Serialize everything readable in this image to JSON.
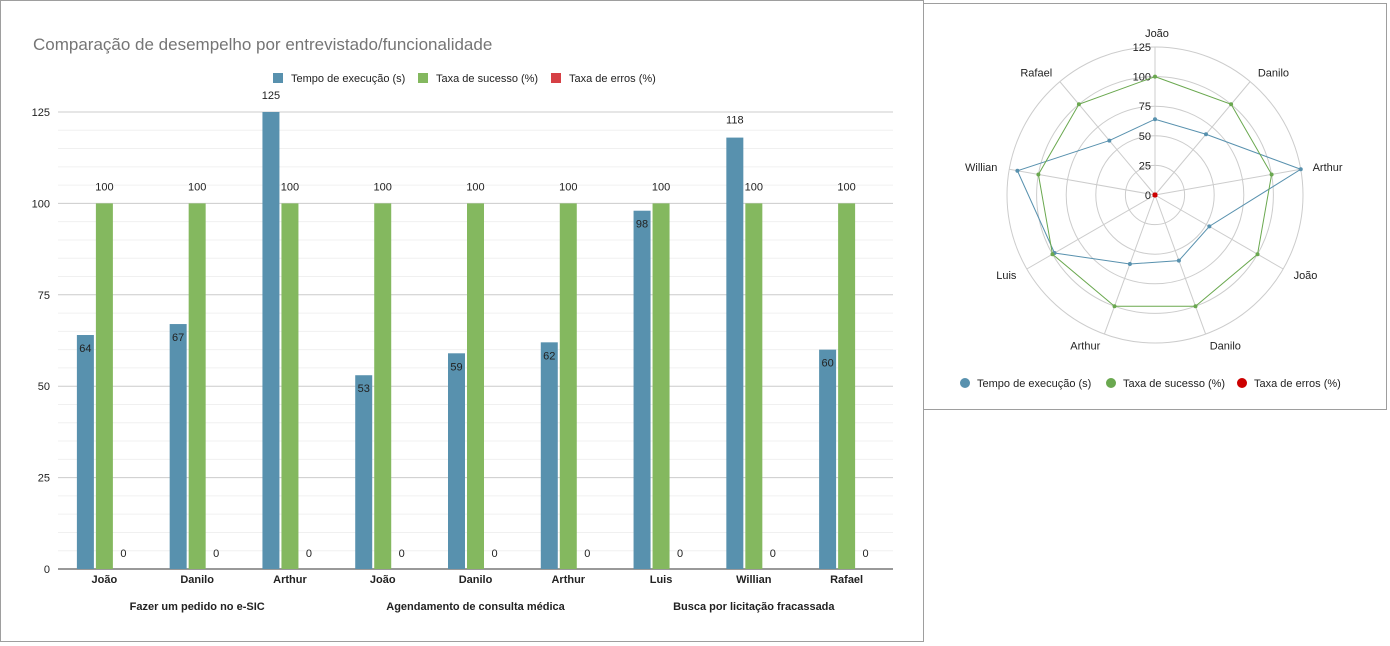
{
  "chart_data": [
    {
      "type": "bar",
      "title": "Comparação de desempelho por entrevistado/funcionalidade",
      "categories": [
        "João",
        "Danilo",
        "Arthur",
        "João",
        "Danilo",
        "Arthur",
        "Luis",
        "Willian",
        "Rafael"
      ],
      "groups": [
        {
          "label": "Fazer um pedido no e-SIC",
          "count": 3
        },
        {
          "label": "Agendamento de consulta médica",
          "count": 3
        },
        {
          "label": "Busca por licitação fracassada",
          "count": 3
        }
      ],
      "series": [
        {
          "name": "Tempo de execução (s)",
          "color": "#5891ae",
          "values": [
            64,
            67,
            125,
            53,
            59,
            62,
            98,
            118,
            60
          ],
          "labels": [
            "64",
            "67",
            "125",
            "53",
            "59",
            "62",
            "98",
            "118",
            "60"
          ]
        },
        {
          "name": "Taxa de sucesso (%)",
          "color": "#84b85f",
          "values": [
            100,
            100,
            100,
            100,
            100,
            100,
            100,
            100,
            100
          ],
          "labels": [
            "100",
            "100",
            "100",
            "100",
            "100",
            "100",
            "100",
            "100",
            "100"
          ]
        },
        {
          "name": "Taxa de erros (%)",
          "color": "#d64045",
          "values": [
            0,
            0,
            0,
            0,
            0,
            0,
            0,
            0,
            0
          ],
          "labels": [
            "0",
            "0",
            "0",
            "0",
            "0",
            "0",
            "0",
            "0",
            "0"
          ]
        }
      ],
      "ylim": [
        0,
        125
      ],
      "yticks": [
        "0",
        "25",
        "50",
        "75",
        "100",
        "125"
      ],
      "grid": true,
      "legend": "top"
    },
    {
      "type": "radar",
      "categories": [
        "João",
        "Danilo",
        "Arthur",
        "João",
        "Danilo",
        "Arthur",
        "Luis",
        "Willian",
        "Rafael"
      ],
      "series": [
        {
          "name": "Tempo de execução (s)",
          "color": "#5891ae",
          "values": [
            64,
            67,
            125,
            53,
            59,
            62,
            98,
            118,
            60
          ]
        },
        {
          "name": "Taxa de sucesso (%)",
          "color": "#6aa84f",
          "values": [
            100,
            100,
            100,
            100,
            100,
            100,
            100,
            100,
            100
          ]
        },
        {
          "name": "Taxa de erros (%)",
          "color": "#cc0000",
          "values": [
            0,
            0,
            0,
            0,
            0,
            0,
            0,
            0,
            0
          ]
        }
      ],
      "rlim": [
        0,
        125
      ],
      "rticks": [
        "0",
        "25",
        "50",
        "75",
        "100",
        "125"
      ],
      "grid": true,
      "legend": "bottom"
    }
  ]
}
